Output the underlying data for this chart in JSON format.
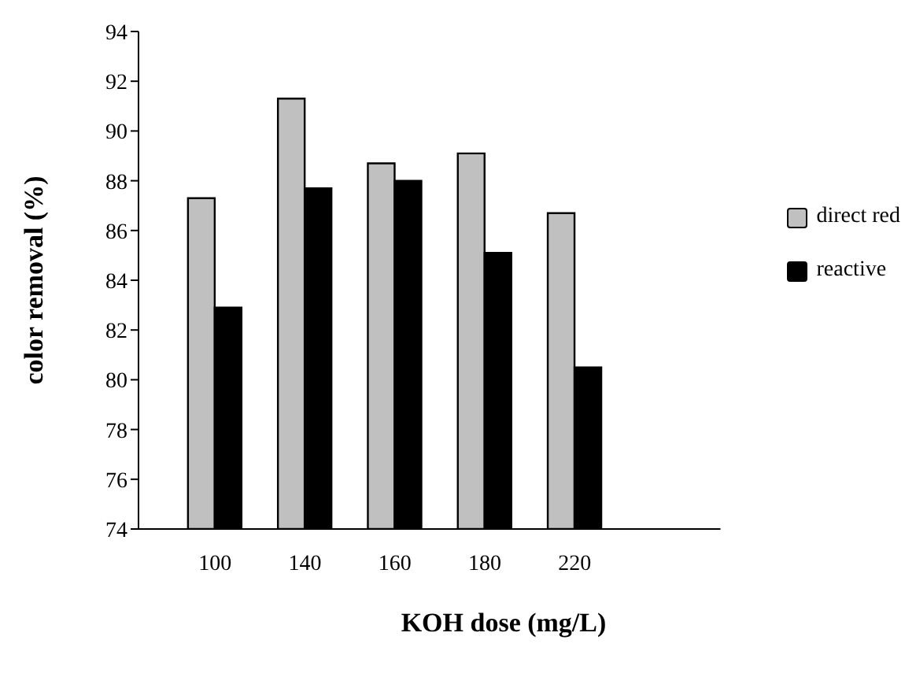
{
  "chart_data": {
    "type": "bar",
    "xlabel": "KOH dose (mg/L)",
    "ylabel": "color removal (%)",
    "categories": [
      "100",
      "140",
      "160",
      "180",
      "220"
    ],
    "series": [
      {
        "name": "direct red",
        "color": "#c0c0c0",
        "values": [
          87.3,
          91.3,
          88.7,
          89.1,
          86.7
        ]
      },
      {
        "name": "reactive",
        "color": "#000000",
        "values": [
          82.9,
          87.7,
          88.0,
          85.1,
          80.5
        ]
      }
    ],
    "ylim": [
      74,
      94
    ],
    "yticks": [
      74,
      76,
      78,
      80,
      82,
      84,
      86,
      88,
      90,
      92,
      94
    ],
    "grid": false,
    "legend": "right"
  }
}
